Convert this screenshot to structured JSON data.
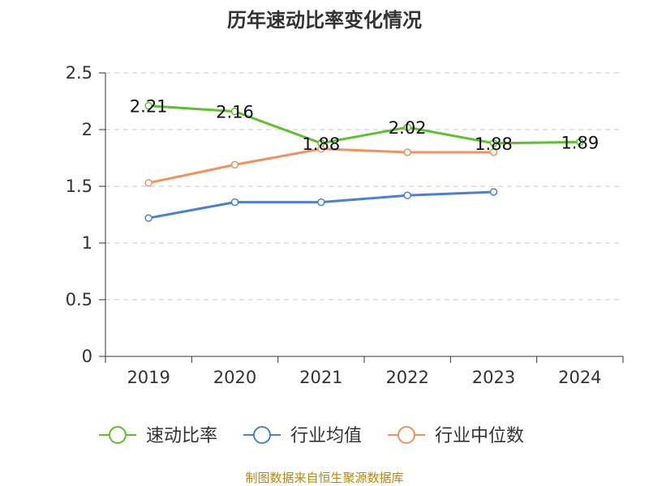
{
  "chart_data": {
    "type": "line",
    "title": "历年速动比率变化情况",
    "categories": [
      "2019",
      "2020",
      "2021",
      "2022",
      "2023",
      "2024"
    ],
    "ylim": [
      0,
      2.5
    ],
    "yticks": [
      "0",
      "0.5",
      "1",
      "1.5",
      "2",
      "2.5"
    ],
    "xlabel": "",
    "ylabel": "",
    "grid": "horizontal dashed",
    "legend_position": "bottom",
    "series": [
      {
        "name": "速动比率",
        "color": "#5cc12b",
        "values": [
          2.21,
          2.16,
          1.88,
          2.02,
          1.88,
          1.89
        ],
        "labels": [
          "2.21",
          "2.16",
          "1.88",
          "2.02",
          "1.88",
          "1.89"
        ],
        "show_labels": true
      },
      {
        "name": "行业均值",
        "color": "#4a7fd9",
        "values": [
          1.22,
          1.36,
          1.36,
          1.42,
          1.45,
          null
        ],
        "show_labels": false
      },
      {
        "name": "行业中位数",
        "color": "#f5905c",
        "values": [
          1.53,
          1.69,
          1.83,
          1.8,
          1.8,
          null
        ],
        "show_labels": false
      }
    ],
    "source": "制图数据来自恒生聚源数据库"
  }
}
